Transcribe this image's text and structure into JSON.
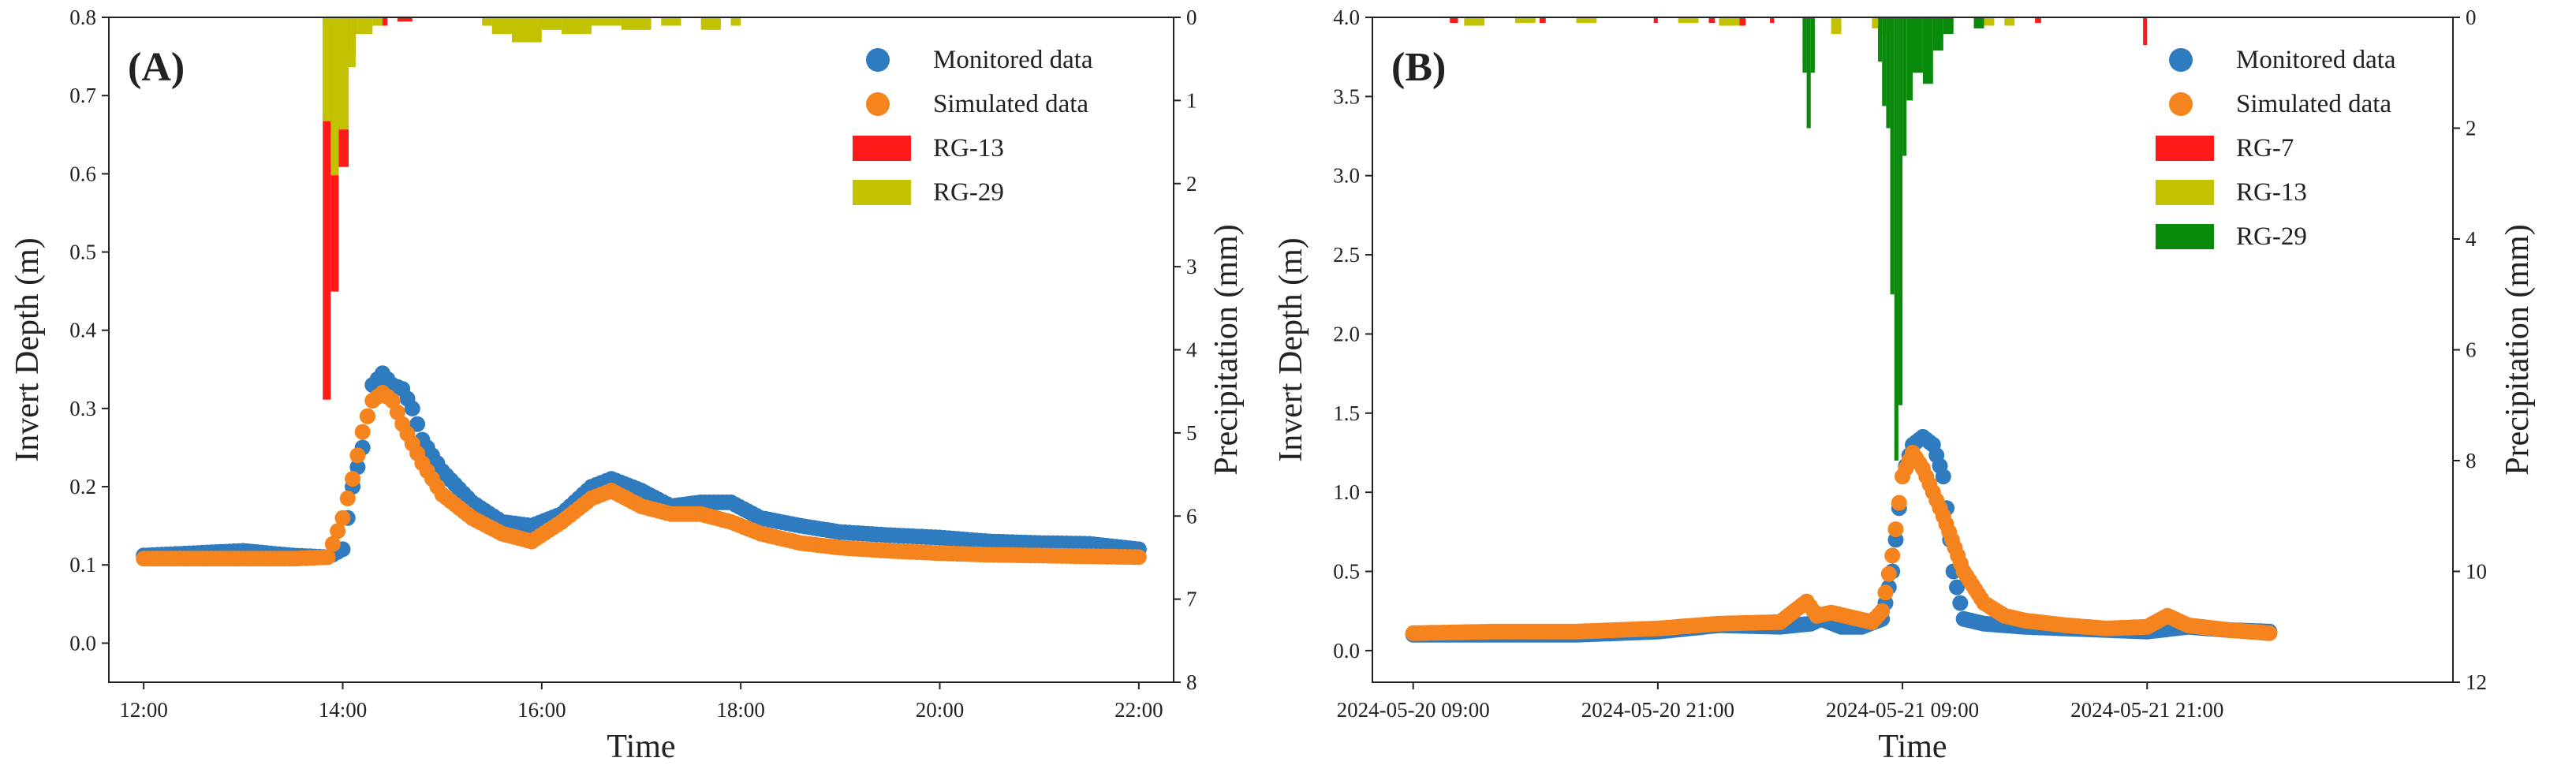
{
  "chart_data": [
    {
      "type": "scatter",
      "panel_label": "(A)",
      "xlabel": "Time",
      "ylabel": "Invert Depth (m)",
      "y2label": "Precipitation (mm)",
      "xlim": [
        11.65,
        22.35
      ],
      "ylim": [
        -0.05,
        0.8
      ],
      "y2lim": [
        8,
        0
      ],
      "xticks": [
        12,
        14,
        16,
        18,
        20,
        22
      ],
      "xtick_labels": [
        "12:00",
        "14:00",
        "16:00",
        "18:00",
        "20:00",
        "22:00"
      ],
      "yticks": [
        0.0,
        0.1,
        0.2,
        0.3,
        0.4,
        0.5,
        0.6,
        0.7,
        0.8
      ],
      "ytick_labels": [
        "0.0",
        "0.1",
        "0.2",
        "0.3",
        "0.4",
        "0.5",
        "0.6",
        "0.7",
        "0.8"
      ],
      "y2ticks": [
        0,
        1,
        2,
        3,
        4,
        5,
        6,
        7,
        8
      ],
      "y2tick_labels": [
        "0",
        "1",
        "2",
        "3",
        "4",
        "5",
        "6",
        "7",
        "8"
      ],
      "legend": {
        "placement": "top-right",
        "entries": [
          {
            "name": "Monitored data",
            "color": "#2f7bbf",
            "marker": "circle"
          },
          {
            "name": "Simulated data",
            "color": "#f5841f",
            "marker": "circle"
          },
          {
            "name": "RG-13",
            "color": "#ff1a1a",
            "marker": "bar"
          },
          {
            "name": "RG-29",
            "color": "#c2c200",
            "marker": "bar"
          }
        ]
      },
      "series": [
        {
          "name": "Monitored data",
          "color": "#2f7bbf",
          "x": [
            12.0,
            12.5,
            13.0,
            13.5,
            13.85,
            14.0,
            14.1,
            14.2,
            14.3,
            14.4,
            14.5,
            14.6,
            14.7,
            14.8,
            15.0,
            15.3,
            15.6,
            15.9,
            16.2,
            16.5,
            16.7,
            17.0,
            17.3,
            17.6,
            17.9,
            18.2,
            18.6,
            19.0,
            19.5,
            20.0,
            20.5,
            21.0,
            21.5,
            22.0
          ],
          "y": [
            0.112,
            0.115,
            0.118,
            0.112,
            0.11,
            0.12,
            0.2,
            0.25,
            0.33,
            0.345,
            0.33,
            0.325,
            0.3,
            0.26,
            0.22,
            0.18,
            0.155,
            0.15,
            0.165,
            0.2,
            0.21,
            0.195,
            0.175,
            0.18,
            0.18,
            0.16,
            0.15,
            0.142,
            0.138,
            0.135,
            0.13,
            0.128,
            0.127,
            0.12
          ]
        },
        {
          "name": "Simulated data",
          "color": "#f5841f",
          "x": [
            12.0,
            12.5,
            13.0,
            13.5,
            13.85,
            14.0,
            14.1,
            14.2,
            14.3,
            14.4,
            14.5,
            14.6,
            14.8,
            15.0,
            15.3,
            15.6,
            15.9,
            16.2,
            16.5,
            16.7,
            17.0,
            17.3,
            17.6,
            17.9,
            18.2,
            18.6,
            19.0,
            19.5,
            20.0,
            20.5,
            21.0,
            21.5,
            22.0
          ],
          "y": [
            0.108,
            0.108,
            0.108,
            0.108,
            0.11,
            0.16,
            0.21,
            0.27,
            0.31,
            0.32,
            0.31,
            0.28,
            0.23,
            0.19,
            0.16,
            0.14,
            0.13,
            0.155,
            0.185,
            0.195,
            0.175,
            0.165,
            0.165,
            0.155,
            0.14,
            0.128,
            0.122,
            0.118,
            0.115,
            0.113,
            0.112,
            0.111,
            0.11
          ]
        }
      ],
      "precip_series": [
        {
          "name": "RG-13",
          "color": "#ff1a1a",
          "bars": [
            [
              13.8,
              13.88,
              4.6
            ],
            [
              13.88,
              13.96,
              3.3
            ],
            [
              13.96,
              14.06,
              1.8
            ],
            [
              14.06,
              14.13,
              0.45
            ],
            [
              14.13,
              14.25,
              0.15
            ],
            [
              14.35,
              14.45,
              0.1
            ],
            [
              14.55,
              14.7,
              0.05
            ],
            [
              15.55,
              15.6,
              0.15
            ],
            [
              15.9,
              16.0,
              0.1
            ]
          ]
        },
        {
          "name": "RG-29",
          "color": "#c2c200",
          "bars": [
            [
              13.8,
              13.88,
              1.25
            ],
            [
              13.88,
              13.96,
              1.9
            ],
            [
              13.96,
              14.06,
              1.35
            ],
            [
              14.06,
              14.13,
              0.6
            ],
            [
              14.13,
              14.3,
              0.2
            ],
            [
              14.3,
              14.4,
              0.1
            ],
            [
              15.4,
              15.5,
              0.1
            ],
            [
              15.5,
              15.7,
              0.2
            ],
            [
              15.7,
              16.0,
              0.3
            ],
            [
              16.0,
              16.2,
              0.15
            ],
            [
              16.2,
              16.5,
              0.2
            ],
            [
              16.5,
              16.8,
              0.1
            ],
            [
              16.8,
              17.1,
              0.15
            ],
            [
              17.2,
              17.4,
              0.1
            ],
            [
              17.6,
              17.8,
              0.15
            ],
            [
              17.9,
              18.0,
              0.1
            ]
          ]
        }
      ]
    },
    {
      "type": "scatter",
      "panel_label": "(B)",
      "xlabel": "Time",
      "ylabel": "Invert Depth (m)",
      "y2label": "Precipitation (mm)",
      "x_unit": "hours",
      "xlim": [
        -2,
        51
      ],
      "ylim": [
        -0.2,
        4.0
      ],
      "y2lim": [
        12,
        0
      ],
      "xticks": [
        0,
        12,
        24,
        36
      ],
      "xtick_labels": [
        "2024-05-20 09:00",
        "2024-05-20 21:00",
        "2024-05-21 09:00",
        "2024-05-21 21:00"
      ],
      "yticks": [
        0.0,
        0.5,
        1.0,
        1.5,
        2.0,
        2.5,
        3.0,
        3.5,
        4.0
      ],
      "ytick_labels": [
        "0.0",
        "0.5",
        "1.0",
        "1.5",
        "2.0",
        "2.5",
        "3.0",
        "3.5",
        "4.0"
      ],
      "y2ticks": [
        0,
        2,
        4,
        6,
        8,
        10,
        12
      ],
      "y2tick_labels": [
        "0",
        "2",
        "4",
        "6",
        "8",
        "10",
        "12"
      ],
      "legend": {
        "placement": "top-right",
        "entries": [
          {
            "name": "Monitored data",
            "color": "#2f7bbf",
            "marker": "circle"
          },
          {
            "name": "Simulated data",
            "color": "#f5841f",
            "marker": "circle"
          },
          {
            "name": "RG-7",
            "color": "#ff1a1a",
            "marker": "bar"
          },
          {
            "name": "RG-13",
            "color": "#c2c200",
            "marker": "bar"
          },
          {
            "name": "RG-29",
            "color": "#0a8a0a",
            "marker": "bar"
          }
        ]
      },
      "series": [
        {
          "name": "Monitored data",
          "color": "#2f7bbf",
          "x": [
            0,
            4,
            8,
            12,
            15,
            18,
            19.5,
            20,
            21,
            22,
            23,
            23.5,
            24,
            24.5,
            25,
            25.5,
            26,
            26.5,
            27,
            28,
            30,
            32,
            34,
            36,
            38,
            40,
            42
          ],
          "y": [
            0.1,
            0.1,
            0.1,
            0.12,
            0.16,
            0.15,
            0.17,
            0.2,
            0.15,
            0.15,
            0.2,
            0.5,
            1.1,
            1.3,
            1.35,
            1.3,
            1.1,
            0.5,
            0.2,
            0.17,
            0.15,
            0.14,
            0.13,
            0.12,
            0.15,
            0.13,
            0.12
          ]
        },
        {
          "name": "Simulated data",
          "color": "#f5841f",
          "x": [
            0,
            4,
            8,
            12,
            15,
            18,
            19.3,
            19.8,
            20.5,
            21.5,
            22.5,
            23.0,
            23.5,
            24.0,
            24.5,
            25.0,
            25.5,
            26.0,
            27.0,
            28.0,
            29,
            30,
            32,
            34,
            36,
            37,
            38,
            40,
            42
          ],
          "y": [
            0.11,
            0.12,
            0.12,
            0.14,
            0.17,
            0.18,
            0.31,
            0.22,
            0.24,
            0.21,
            0.18,
            0.25,
            0.6,
            1.1,
            1.25,
            1.15,
            1.0,
            0.85,
            0.5,
            0.3,
            0.22,
            0.19,
            0.16,
            0.14,
            0.15,
            0.22,
            0.16,
            0.13,
            0.11
          ]
        }
      ],
      "precip_series": [
        {
          "name": "RG-7",
          "color": "#ff1a1a",
          "bars": [
            [
              1.8,
              2.2,
              0.1
            ],
            [
              6.2,
              6.5,
              0.1
            ],
            [
              11.8,
              12.0,
              0.1
            ],
            [
              14.5,
              14.8,
              0.1
            ],
            [
              16.0,
              16.3,
              0.15
            ],
            [
              17.5,
              17.7,
              0.1
            ],
            [
              24.5,
              24.8,
              0.1
            ],
            [
              27.5,
              27.8,
              0.1
            ],
            [
              35.8,
              36.0,
              0.5
            ],
            [
              30.5,
              30.8,
              0.1
            ]
          ]
        },
        {
          "name": "RG-13",
          "color": "#c2c200",
          "bars": [
            [
              2.5,
              3.5,
              0.15
            ],
            [
              5.0,
              6.0,
              0.1
            ],
            [
              8.0,
              9.0,
              0.1
            ],
            [
              13.0,
              14.0,
              0.1
            ],
            [
              15.0,
              16.0,
              0.15
            ],
            [
              20.5,
              21.0,
              0.3
            ],
            [
              22.5,
              23.0,
              0.2
            ],
            [
              23.0,
              23.5,
              0.3
            ],
            [
              25.5,
              26.0,
              0.4
            ],
            [
              26.0,
              26.5,
              0.2
            ],
            [
              28.0,
              28.5,
              0.15
            ],
            [
              29.0,
              29.5,
              0.15
            ]
          ]
        },
        {
          "name": "RG-29",
          "color": "#0a8a0a",
          "bars": [
            [
              19.1,
              19.3,
              1.0
            ],
            [
              19.3,
              19.5,
              2.0
            ],
            [
              19.5,
              19.7,
              1.0
            ],
            [
              22.8,
              23.0,
              0.8
            ],
            [
              23.0,
              23.2,
              1.6
            ],
            [
              23.2,
              23.4,
              2.0
            ],
            [
              23.4,
              23.6,
              5.0
            ],
            [
              23.6,
              23.8,
              8.0
            ],
            [
              23.8,
              24.0,
              7.0
            ],
            [
              24.0,
              24.2,
              2.5
            ],
            [
              24.2,
              24.5,
              1.5
            ],
            [
              24.5,
              25.0,
              1.0
            ],
            [
              25.0,
              25.5,
              1.2
            ],
            [
              25.5,
              26.0,
              0.6
            ],
            [
              26.0,
              26.5,
              0.3
            ],
            [
              27.5,
              28.0,
              0.2
            ]
          ]
        }
      ]
    }
  ]
}
